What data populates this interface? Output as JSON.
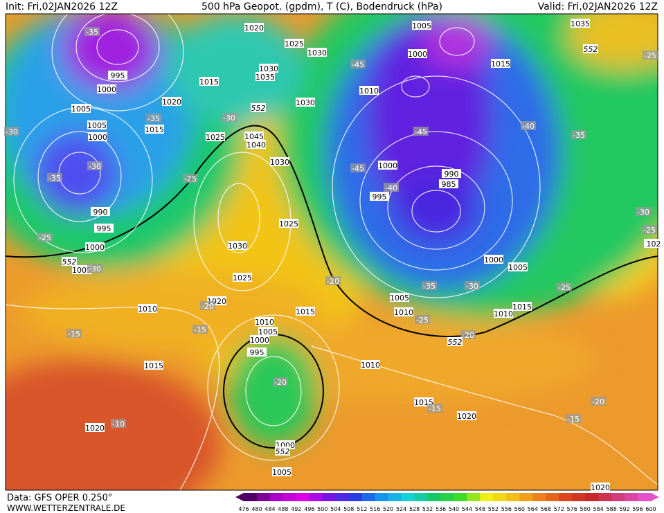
{
  "header": {
    "init": "Init: Fri,02JAN2026 12Z",
    "title": "500 hPa Geopot. (gpdm), T (C), Bodendruck (hPa)",
    "valid": "Valid: Fri,02JAN2026 12Z"
  },
  "footer": {
    "data_source": "Data: GFS OPER 0.250°",
    "website": "WWW.WETTERZENTRALE.DE"
  },
  "colorbar": {
    "ticks": [
      476,
      480,
      484,
      488,
      492,
      496,
      500,
      504,
      508,
      512,
      516,
      520,
      524,
      528,
      532,
      536,
      540,
      544,
      548,
      552,
      556,
      560,
      564,
      568,
      572,
      576,
      580,
      584,
      588,
      592,
      596,
      600
    ]
  },
  "map": {
    "isobar_labels": [
      "1020",
      "1005",
      "1035",
      "1025",
      "1030",
      "995",
      "1000",
      "1030",
      "1035",
      "1015",
      "1000",
      "1015",
      "1010",
      "1005",
      "1020",
      "1030",
      "1005",
      "1015",
      "1000",
      "1025",
      "1045",
      "1040",
      "1030",
      "1000",
      "990",
      "985",
      "995",
      "990",
      "995",
      "1025",
      "1030",
      "1000",
      "1000",
      "1005",
      "1005",
      "1025",
      "1020",
      "1010",
      "1015",
      "1005",
      "1010",
      "1015",
      "1010",
      "1010",
      "1005",
      "1000",
      "995",
      "1015",
      "1010",
      "1015",
      "1020",
      "1020",
      "1000",
      "1005",
      "1020",
      "102"
    ],
    "temperature_labels": [
      "-35",
      "-25",
      "-45",
      "-35",
      "-30",
      "-40",
      "-45",
      "-35",
      "-30",
      "-30",
      "-35",
      "-45",
      "-25",
      "-40",
      "-30",
      "-25",
      "-25",
      "-30",
      "-20",
      "-35",
      "-30",
      "-25",
      "-20",
      "-25",
      "-15",
      "-20",
      "-15",
      "-20",
      "-15",
      "-20",
      "-15",
      "-10"
    ],
    "contour_552_labels": [
      "552",
      "552",
      "552",
      "552",
      "552"
    ]
  }
}
